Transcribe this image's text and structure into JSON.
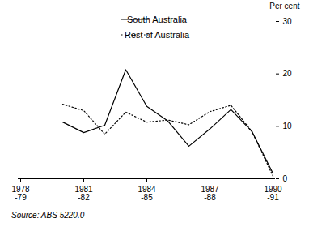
{
  "chart_data": {
    "type": "line",
    "categories": [
      "1978-79",
      null,
      null,
      "1981-82",
      null,
      null,
      "1984-85",
      null,
      null,
      "1987-88",
      null,
      null,
      "1990-91"
    ],
    "series": [
      {
        "name": "South Australia",
        "color": "#000000",
        "line_style": "solid",
        "values": [
          null,
          null,
          10.8,
          8.8,
          10.2,
          20.8,
          13.8,
          11,
          6.2,
          9.5,
          13.2,
          9,
          1
        ]
      },
      {
        "name": "Rest of Australia",
        "color": "#000000",
        "line_style": "dotted",
        "values": [
          null,
          null,
          14.2,
          13,
          8.5,
          12.7,
          10.8,
          11.2,
          10.3,
          12.8,
          14,
          9,
          0.5
        ]
      }
    ],
    "ylabel": "Per cent",
    "ylim": [
      0,
      30
    ],
    "yticks": [
      0,
      10,
      20,
      30
    ],
    "legend": "top right",
    "caption": "Source: ABS 5220.0"
  }
}
